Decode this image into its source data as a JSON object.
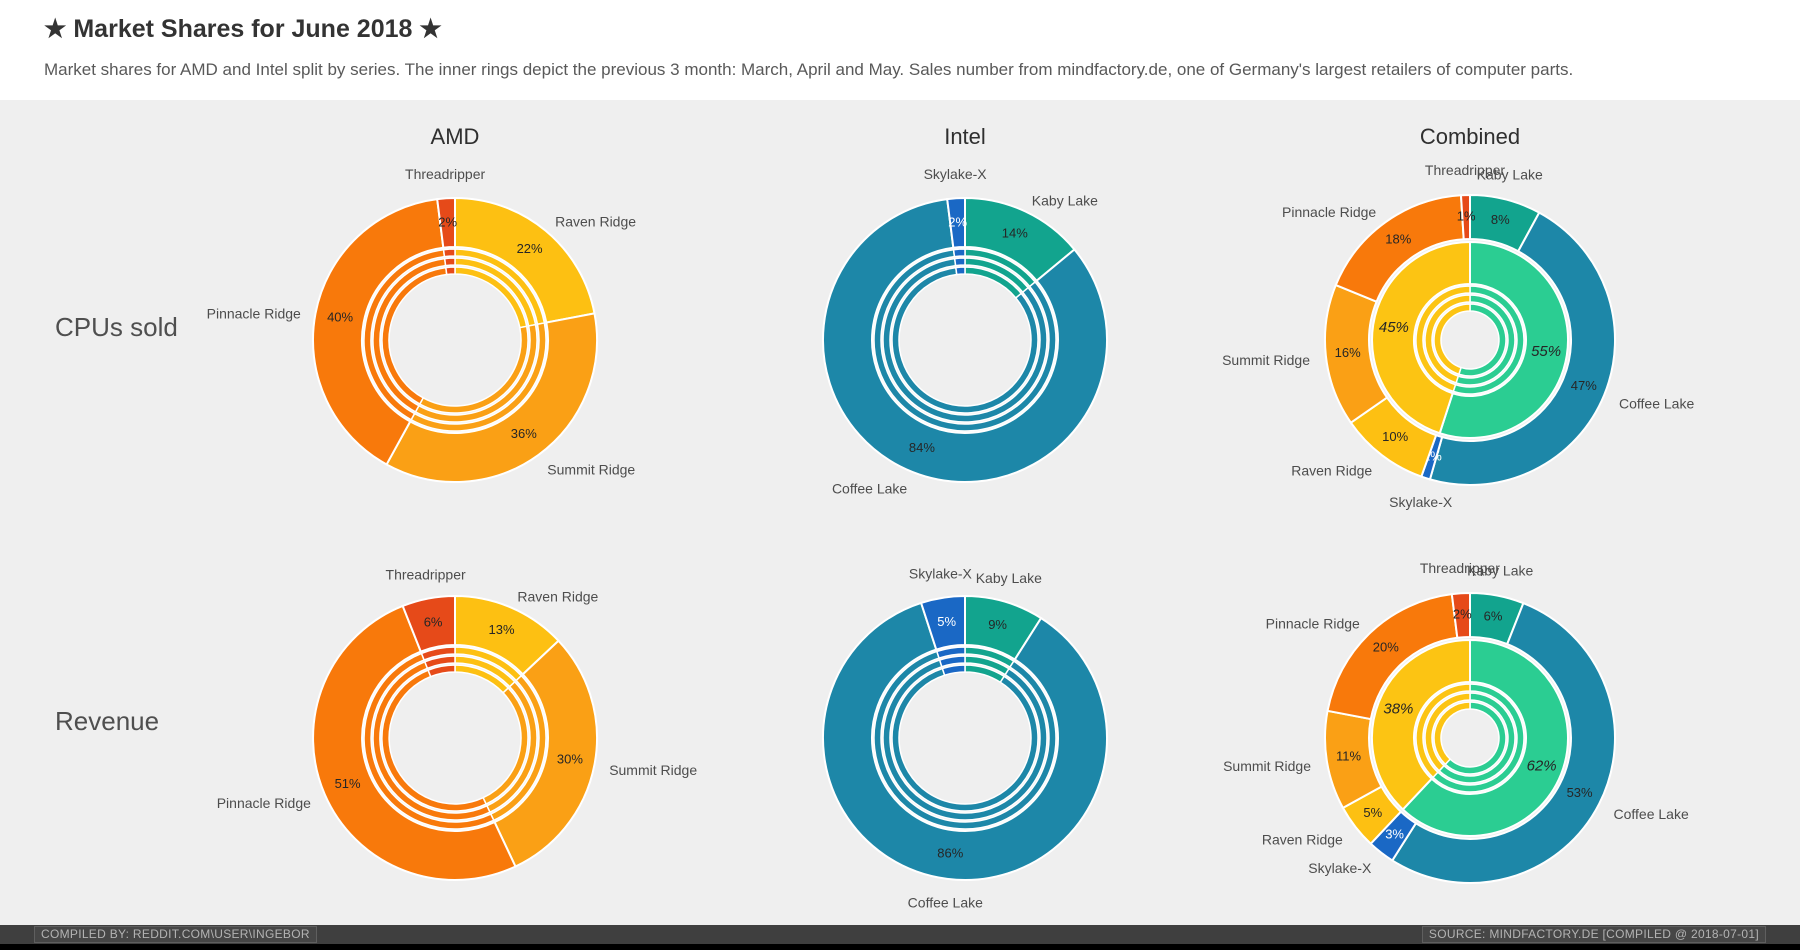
{
  "header": {
    "title": "★ Market Shares for June 2018 ★",
    "subtitle": "Market shares for AMD and Intel split by series. The inner rings depict the previous 3 month: March, April and May. Sales number from mindfactory.de, one of Germany's largest retailers of computer parts."
  },
  "columns": [
    "AMD",
    "Intel",
    "Combined"
  ],
  "rows": [
    {
      "label": "CPUs sold"
    },
    {
      "label": "Revenue"
    }
  ],
  "footer": {
    "left": "COMPILED BY: REDDIT.COM\\USER\\INGEBOR",
    "right": "SOURCE: MINDFACTORY.DE [COMPILED @ 2018-07-01]"
  },
  "colors": {
    "threadripper": "#e64a19",
    "pinnacle_ridge": "#f8790b",
    "summit_ridge": "#faa015",
    "raven_ridge": "#fdc012",
    "skylake_x": "#1a68c5",
    "kaby_lake": "#12a48e",
    "coffee_lake": "#1d87a8",
    "amd_total": "#fcc413",
    "intel_total": "#2bcd92",
    "background": "#efefef",
    "footer_bar": "#3f3f3f"
  },
  "chart_data": [
    {
      "type": "pie",
      "subtype": "donut",
      "row": "CPUs sold",
      "column": "AMD",
      "title": "AMD",
      "unit": "%",
      "slices": [
        {
          "label": "Raven Ridge",
          "value": 22,
          "color": "raven_ridge"
        },
        {
          "label": "Summit Ridge",
          "value": 36,
          "color": "summit_ridge"
        },
        {
          "label": "Pinnacle Ridge",
          "value": 40,
          "color": "pinnacle_ridge"
        },
        {
          "label": "Threadripper",
          "value": 2,
          "color": "threadripper"
        }
      ],
      "history_rings": {
        "count": 3,
        "months": [
          "March",
          "April",
          "May"
        ],
        "labeled": false
      },
      "totals_ring": null
    },
    {
      "type": "pie",
      "subtype": "donut",
      "row": "CPUs sold",
      "column": "Intel",
      "title": "Intel",
      "unit": "%",
      "slices": [
        {
          "label": "Kaby Lake",
          "value": 14,
          "color": "kaby_lake"
        },
        {
          "label": "Coffee Lake",
          "value": 84,
          "color": "coffee_lake"
        },
        {
          "label": "Skylake-X",
          "value": 2,
          "color": "skylake_x"
        }
      ],
      "history_rings": {
        "count": 3,
        "months": [
          "March",
          "April",
          "May"
        ],
        "labeled": false
      },
      "totals_ring": null
    },
    {
      "type": "pie",
      "subtype": "donut",
      "row": "CPUs sold",
      "column": "Combined",
      "title": "Combined",
      "unit": "%",
      "slices": [
        {
          "label": "Kaby Lake",
          "value": 8,
          "color": "kaby_lake"
        },
        {
          "label": "Coffee Lake",
          "value": 47,
          "color": "coffee_lake"
        },
        {
          "label": "Skylake-X",
          "value": 1,
          "color": "skylake_x"
        },
        {
          "label": "Raven Ridge",
          "value": 10,
          "color": "raven_ridge"
        },
        {
          "label": "Summit Ridge",
          "value": 16,
          "color": "summit_ridge"
        },
        {
          "label": "Pinnacle Ridge",
          "value": 18,
          "color": "pinnacle_ridge"
        },
        {
          "label": "Threadripper",
          "value": 1,
          "color": "threadripper"
        }
      ],
      "history_rings": {
        "count": 3,
        "months": [
          "March",
          "April",
          "May"
        ],
        "labeled": false
      },
      "totals_ring": {
        "slices": [
          {
            "label": "Intel",
            "value": 55,
            "color": "intel_total"
          },
          {
            "label": "AMD",
            "value": 45,
            "color": "amd_total"
          }
        ]
      }
    },
    {
      "type": "pie",
      "subtype": "donut",
      "row": "Revenue",
      "column": "AMD",
      "title": "AMD",
      "unit": "%",
      "slices": [
        {
          "label": "Raven Ridge",
          "value": 13,
          "color": "raven_ridge"
        },
        {
          "label": "Summit Ridge",
          "value": 30,
          "color": "summit_ridge"
        },
        {
          "label": "Pinnacle Ridge",
          "value": 51,
          "color": "pinnacle_ridge"
        },
        {
          "label": "Threadripper",
          "value": 6,
          "color": "threadripper"
        }
      ],
      "history_rings": {
        "count": 3,
        "months": [
          "March",
          "April",
          "May"
        ],
        "labeled": false
      },
      "totals_ring": null
    },
    {
      "type": "pie",
      "subtype": "donut",
      "row": "Revenue",
      "column": "Intel",
      "title": "Intel",
      "unit": "%",
      "slices": [
        {
          "label": "Kaby Lake",
          "value": 9,
          "color": "kaby_lake"
        },
        {
          "label": "Coffee Lake",
          "value": 86,
          "color": "coffee_lake"
        },
        {
          "label": "Skylake-X",
          "value": 5,
          "color": "skylake_x"
        }
      ],
      "history_rings": {
        "count": 3,
        "months": [
          "March",
          "April",
          "May"
        ],
        "labeled": false
      },
      "totals_ring": null
    },
    {
      "type": "pie",
      "subtype": "donut",
      "row": "Revenue",
      "column": "Combined",
      "title": "Combined",
      "unit": "%",
      "slices": [
        {
          "label": "Kaby Lake",
          "value": 6,
          "color": "kaby_lake"
        },
        {
          "label": "Coffee Lake",
          "value": 53,
          "color": "coffee_lake"
        },
        {
          "label": "Skylake-X",
          "value": 3,
          "color": "skylake_x"
        },
        {
          "label": "Raven Ridge",
          "value": 5,
          "color": "raven_ridge"
        },
        {
          "label": "Summit Ridge",
          "value": 11,
          "color": "summit_ridge"
        },
        {
          "label": "Pinnacle Ridge",
          "value": 20,
          "color": "pinnacle_ridge"
        },
        {
          "label": "Threadripper",
          "value": 2,
          "color": "threadripper"
        }
      ],
      "history_rings": {
        "count": 3,
        "months": [
          "March",
          "April",
          "May"
        ],
        "labeled": false
      },
      "totals_ring": {
        "slices": [
          {
            "label": "Intel",
            "value": 62,
            "color": "intel_total"
          },
          {
            "label": "AMD",
            "value": 38,
            "color": "amd_total"
          }
        ]
      }
    }
  ]
}
